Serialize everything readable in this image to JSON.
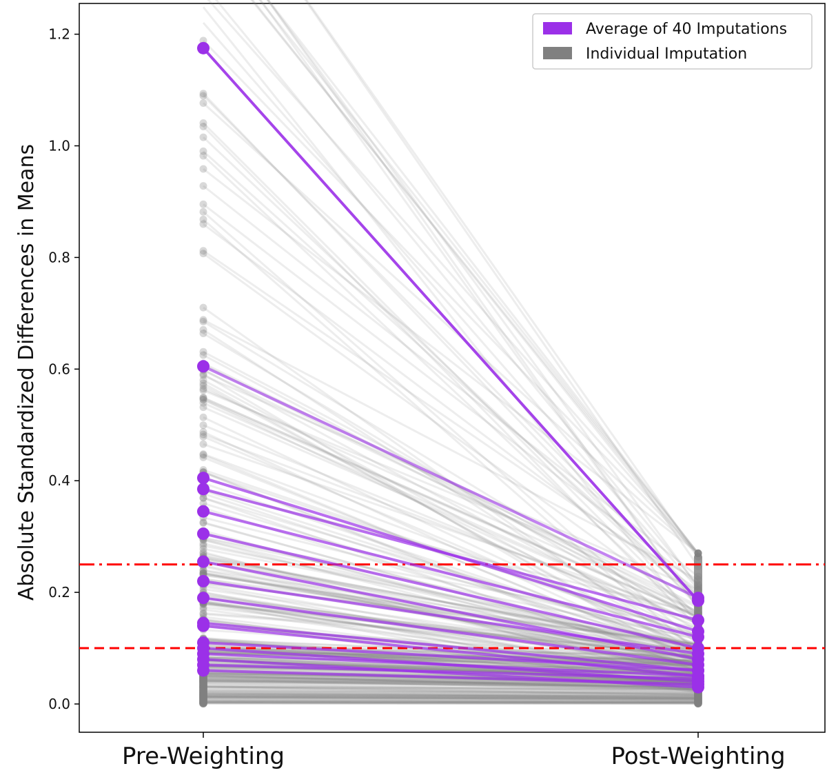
{
  "chart_data": {
    "type": "line",
    "categories": [
      "Pre-Weighting",
      "Post-Weighting"
    ],
    "ylabel": "Absolute Standardized Differences in Means",
    "xlabel": "",
    "ylim": [
      -0.04,
      1.25
    ],
    "yticks": [
      0.0,
      0.2,
      0.4,
      0.6,
      0.8,
      1.0,
      1.2
    ],
    "ytick_labels": [
      "0.0",
      "0.2",
      "0.4",
      "0.6",
      "0.8",
      "1.0",
      "1.2"
    ],
    "grid": false,
    "legend": {
      "position": "top-right",
      "entries": [
        {
          "label": "Average of 40 Imputations",
          "color": "#9b30e8"
        },
        {
          "label": "Individual Imputation",
          "color": "#808080"
        }
      ]
    },
    "reference_lines": [
      {
        "y": 0.25,
        "style": "dash-dot",
        "color": "#ff0000"
      },
      {
        "y": 0.1,
        "style": "dashed",
        "color": "#ff0000"
      }
    ],
    "series": [
      {
        "name": "Average of 40 Imputations",
        "color": "#9b30e8",
        "pairs": [
          [
            1.175,
            0.185
          ],
          [
            0.605,
            0.19
          ],
          [
            0.405,
            0.13
          ],
          [
            0.385,
            0.15
          ],
          [
            0.345,
            0.12
          ],
          [
            0.305,
            0.1
          ],
          [
            0.255,
            0.08
          ],
          [
            0.22,
            0.09
          ],
          [
            0.19,
            0.07
          ],
          [
            0.145,
            0.06
          ],
          [
            0.14,
            0.05
          ],
          [
            0.11,
            0.06
          ],
          [
            0.1,
            0.04
          ],
          [
            0.09,
            0.05
          ],
          [
            0.08,
            0.03
          ],
          [
            0.07,
            0.045
          ],
          [
            0.06,
            0.035
          ]
        ]
      },
      {
        "name": "Individual Imputation",
        "color": "#808080",
        "pre_range": [
          0.0,
          1.6
        ],
        "post_range": [
          0.0,
          0.27
        ]
      }
    ]
  }
}
